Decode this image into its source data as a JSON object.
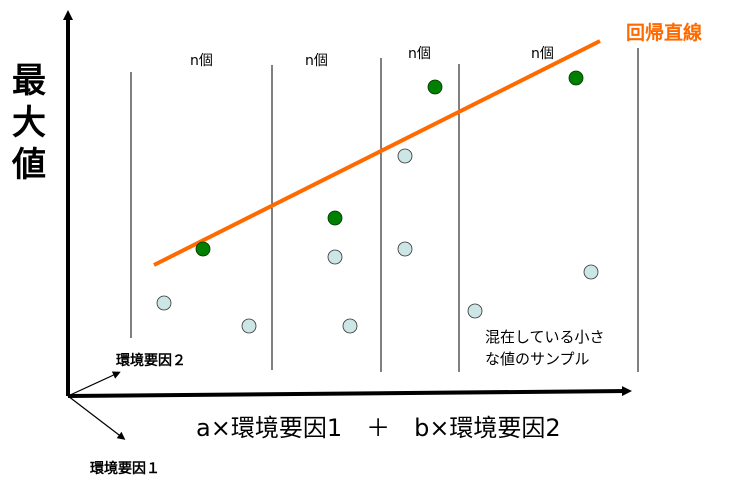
{
  "diagram": {
    "y_axis_label": [
      "最",
      "大",
      "値"
    ],
    "x_axis_label": "a×環境要因1　＋　b×環境要因2",
    "env_factor_2_label": "環境要因２",
    "env_factor_1_label": "環境要因１",
    "bin_labels": [
      "n個",
      "n個",
      "n個",
      "n個"
    ],
    "regression_label": "回帰直線",
    "note_lines": [
      "混在している小さ",
      "な値のサンプル"
    ],
    "colors": {
      "regression_line": "#ff6a00",
      "max_point": "#008000",
      "small_point": "#cce5e5",
      "axis": "#000000"
    }
  }
}
